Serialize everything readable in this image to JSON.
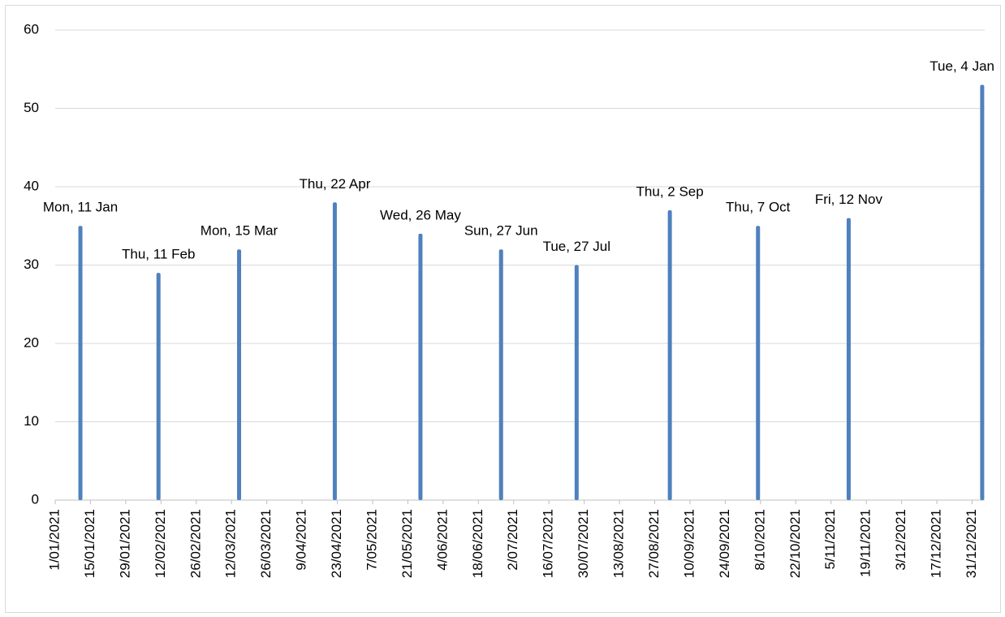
{
  "chart_data": {
    "type": "bar",
    "x": [
      "2021-01-11",
      "2021-02-11",
      "2021-03-15",
      "2021-04-22",
      "2021-05-26",
      "2021-06-27",
      "2021-07-27",
      "2021-09-02",
      "2021-10-07",
      "2021-11-12",
      "2022-01-04"
    ],
    "point_labels": [
      "Mon, 11 Jan",
      "Thu, 11 Feb",
      "Mon, 15 Mar",
      "Thu, 22 Apr",
      "Wed, 26 May",
      "Sun, 27 Jun",
      "Tue, 27 Jul",
      "Thu, 2 Sep",
      "Thu, 7 Oct",
      "Fri, 12 Nov",
      "Tue, 4 Jan"
    ],
    "values": [
      35,
      29,
      32,
      38,
      34,
      32,
      30,
      37,
      35,
      36,
      53
    ],
    "color": "#4f81bd",
    "xlim": [
      "2021-01-01",
      "2022-01-05"
    ],
    "xticks": [
      {
        "value": "2021-01-01",
        "label": "1/01/2021"
      },
      {
        "value": "2021-01-15",
        "label": "15/01/2021"
      },
      {
        "value": "2021-01-29",
        "label": "29/01/2021"
      },
      {
        "value": "2021-02-12",
        "label": "12/02/2021"
      },
      {
        "value": "2021-02-26",
        "label": "26/02/2021"
      },
      {
        "value": "2021-03-12",
        "label": "12/03/2021"
      },
      {
        "value": "2021-03-26",
        "label": "26/03/2021"
      },
      {
        "value": "2021-04-09",
        "label": "9/04/2021"
      },
      {
        "value": "2021-04-23",
        "label": "23/04/2021"
      },
      {
        "value": "2021-05-07",
        "label": "7/05/2021"
      },
      {
        "value": "2021-05-21",
        "label": "21/05/2021"
      },
      {
        "value": "2021-06-04",
        "label": "4/06/2021"
      },
      {
        "value": "2021-06-18",
        "label": "18/06/2021"
      },
      {
        "value": "2021-07-02",
        "label": "2/07/2021"
      },
      {
        "value": "2021-07-16",
        "label": "16/07/2021"
      },
      {
        "value": "2021-07-30",
        "label": "30/07/2021"
      },
      {
        "value": "2021-08-13",
        "label": "13/08/2021"
      },
      {
        "value": "2021-08-27",
        "label": "27/08/2021"
      },
      {
        "value": "2021-09-10",
        "label": "10/09/2021"
      },
      {
        "value": "2021-09-24",
        "label": "24/09/2021"
      },
      {
        "value": "2021-10-08",
        "label": "8/10/2021"
      },
      {
        "value": "2021-10-22",
        "label": "22/10/2021"
      },
      {
        "value": "2021-11-05",
        "label": "5/11/2021"
      },
      {
        "value": "2021-11-19",
        "label": "19/11/2021"
      },
      {
        "value": "2021-12-03",
        "label": "3/12/2021"
      },
      {
        "value": "2021-12-17",
        "label": "17/12/2021"
      },
      {
        "value": "2021-12-31",
        "label": "31/12/2021"
      }
    ],
    "ylim": [
      0,
      60
    ],
    "yticks": [
      0,
      10,
      20,
      30,
      40,
      50,
      60
    ],
    "grid": true
  }
}
